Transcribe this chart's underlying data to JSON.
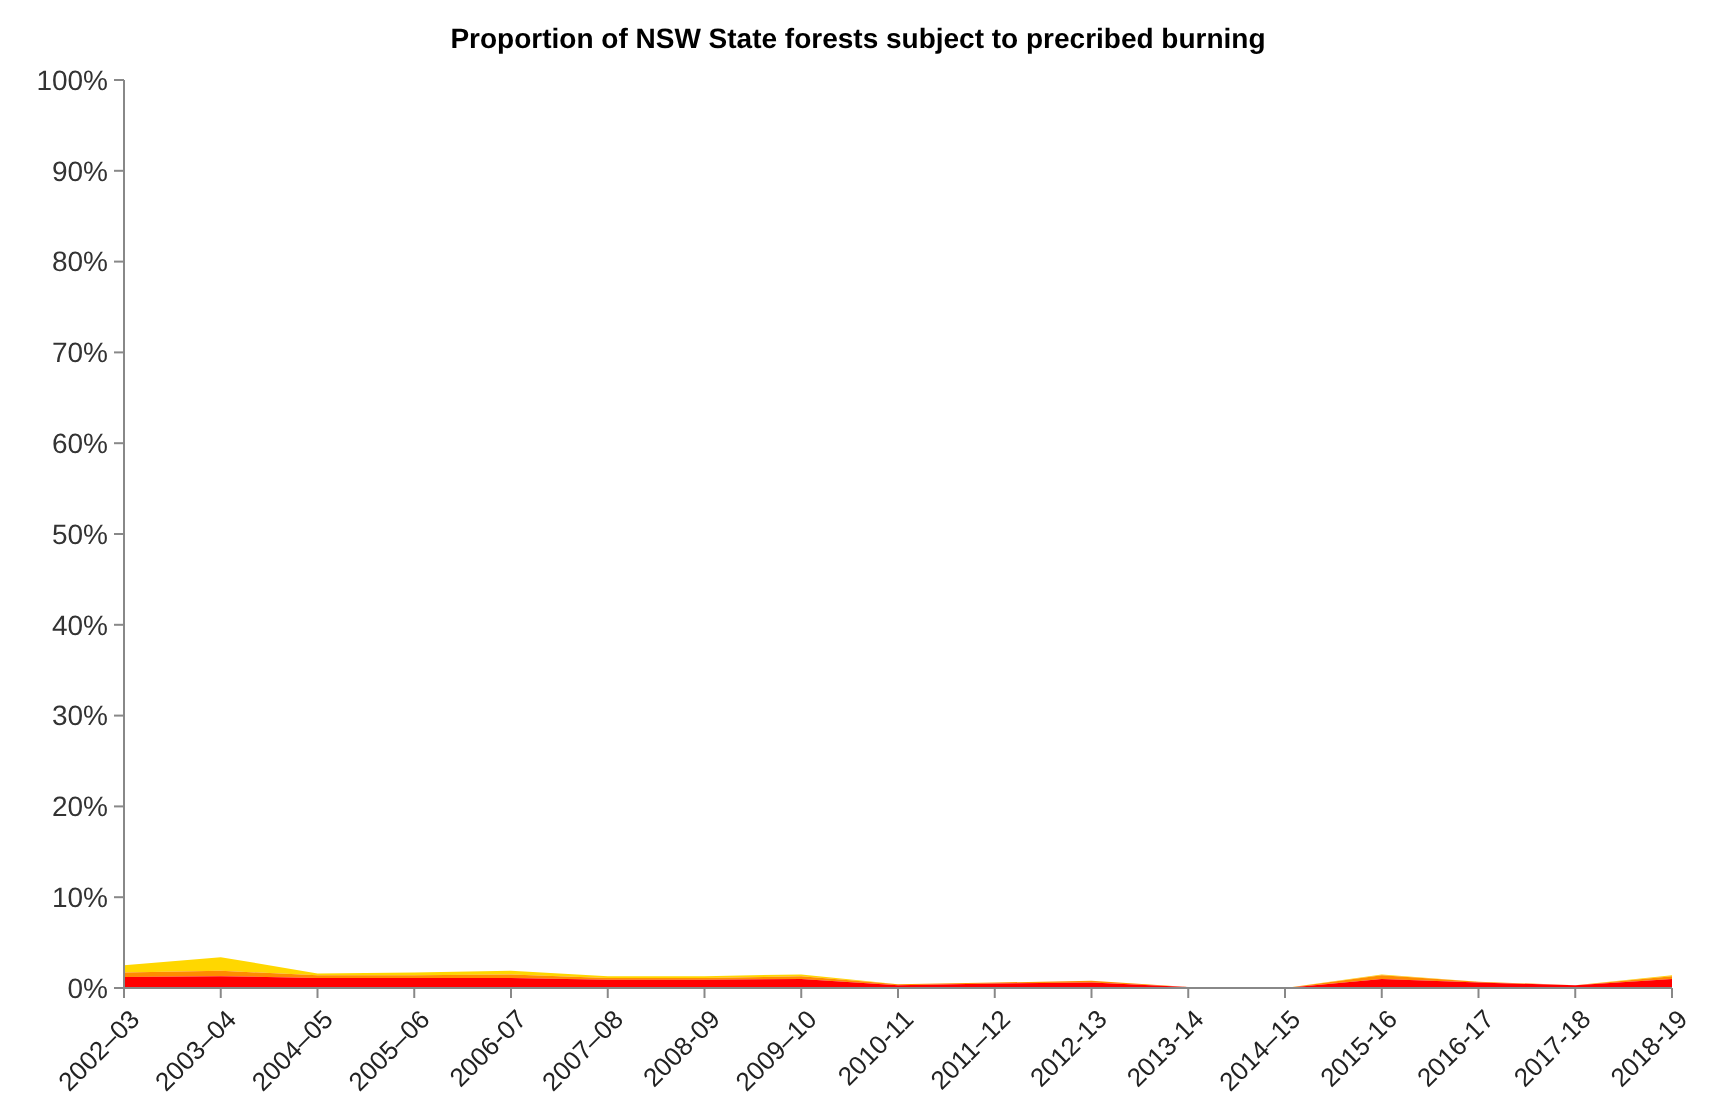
{
  "chart_data": {
    "type": "area",
    "stacked": true,
    "title": "Proportion of NSW State forests subject to precribed burning",
    "categories": [
      "2002–03",
      "2003–04",
      "2004–05",
      "2005–06",
      "2006-07",
      "2007–08",
      "2008-09",
      "2009–10",
      "2010-11",
      "2011–12",
      "2012-13",
      "2013-14",
      "2014–15",
      "2015-16",
      "2016-17",
      "2017-18",
      "2018-19"
    ],
    "series": [
      {
        "color": "#ff0000",
        "values": [
          1.2,
          1.3,
          1.1,
          1.1,
          1.1,
          0.9,
          0.9,
          1.0,
          0.3,
          0.5,
          0.6,
          0.1,
          0,
          1.0,
          0.6,
          0.3,
          1.0
        ]
      },
      {
        "color": "#ff8c00",
        "values": [
          0.5,
          0.6,
          0.3,
          0.3,
          0.4,
          0.2,
          0.2,
          0.3,
          0.1,
          0.1,
          0.2,
          0,
          0,
          0.4,
          0.1,
          0,
          0.3
        ]
      },
      {
        "color": "#ffd700",
        "values": [
          0.8,
          1.5,
          0.2,
          0.3,
          0.4,
          0.2,
          0.2,
          0.2,
          0,
          0,
          0,
          0,
          0,
          0.1,
          0,
          0,
          0.1
        ]
      }
    ],
    "ylim": [
      0,
      100
    ],
    "yticks": [
      {
        "value": 0,
        "label": "0%"
      },
      {
        "value": 10,
        "label": "10%"
      },
      {
        "value": 20,
        "label": "20%"
      },
      {
        "value": 30,
        "label": "30%"
      },
      {
        "value": 40,
        "label": "40%"
      },
      {
        "value": 50,
        "label": "50%"
      },
      {
        "value": 60,
        "label": "60%"
      },
      {
        "value": 70,
        "label": "70%"
      },
      {
        "value": 80,
        "label": "80%"
      },
      {
        "value": 90,
        "label": "90%"
      },
      {
        "value": 100,
        "label": "100%"
      }
    ],
    "grid": false
  }
}
